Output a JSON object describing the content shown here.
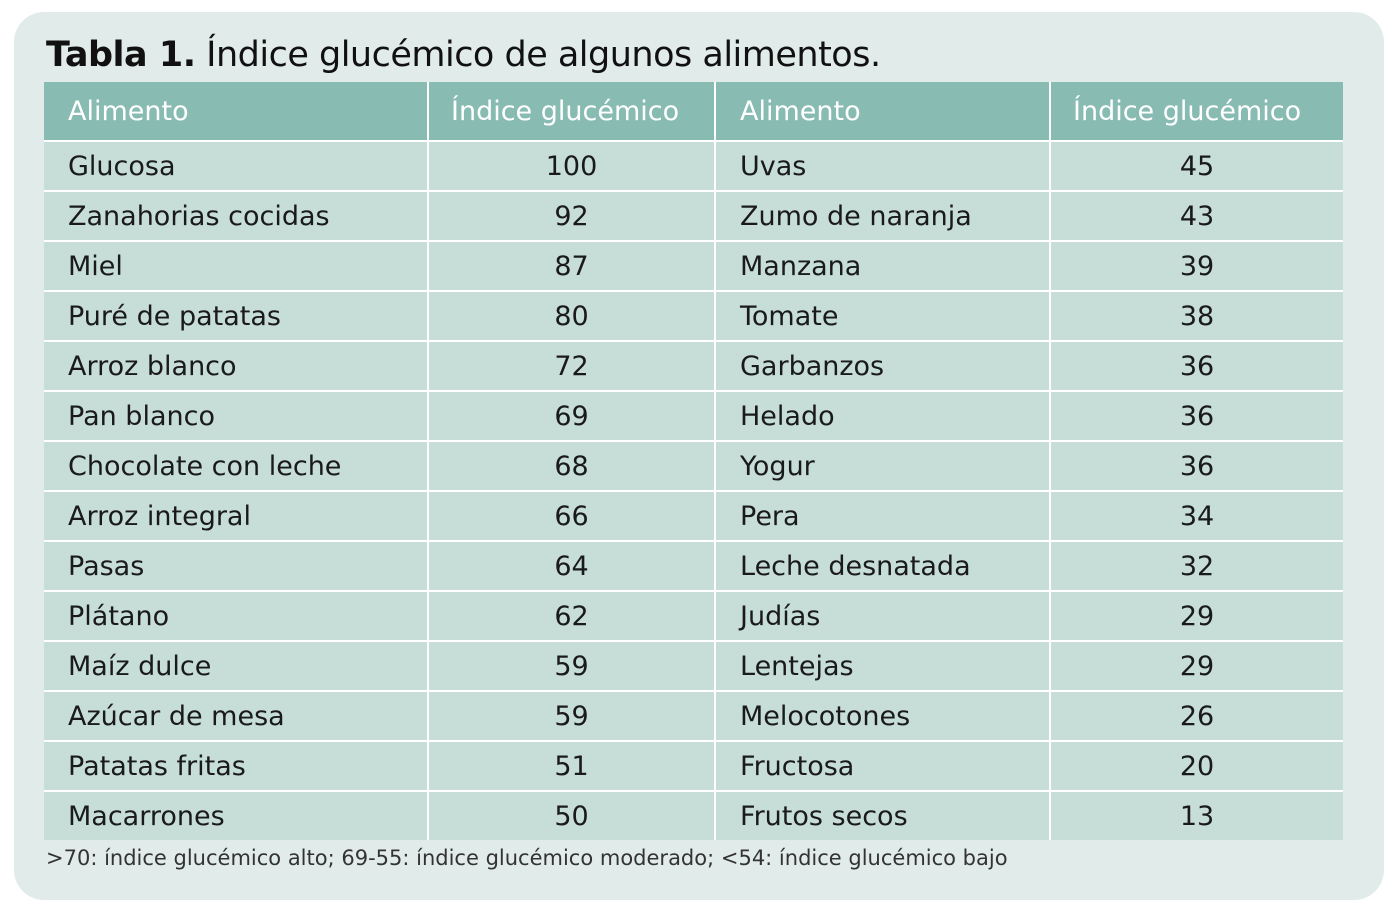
{
  "title": {
    "label": "Tabla 1.",
    "text": "Índice glucémico de algunos alimentos."
  },
  "columns": [
    "Alimento",
    "Índice glucémico",
    "Alimento",
    "Índice glucémico"
  ],
  "rows": [
    {
      "food_left": "Glucosa",
      "gi_left": "100",
      "food_right": "Uvas",
      "gi_right": "45"
    },
    {
      "food_left": "Zanahorias cocidas",
      "gi_left": "92",
      "food_right": "Zumo de naranja",
      "gi_right": "43"
    },
    {
      "food_left": "Miel",
      "gi_left": "87",
      "food_right": "Manzana",
      "gi_right": "39"
    },
    {
      "food_left": "Puré de patatas",
      "gi_left": "80",
      "food_right": "Tomate",
      "gi_right": "38"
    },
    {
      "food_left": "Arroz blanco",
      "gi_left": "72",
      "food_right": "Garbanzos",
      "gi_right": "36"
    },
    {
      "food_left": "Pan blanco",
      "gi_left": "69",
      "food_right": "Helado",
      "gi_right": "36"
    },
    {
      "food_left": "Chocolate con leche",
      "gi_left": "68",
      "food_right": "Yogur",
      "gi_right": "36"
    },
    {
      "food_left": "Arroz integral",
      "gi_left": "66",
      "food_right": "Pera",
      "gi_right": "34"
    },
    {
      "food_left": "Pasas",
      "gi_left": "64",
      "food_right": "Leche desnatada",
      "gi_right": "32"
    },
    {
      "food_left": "Plátano",
      "gi_left": "62",
      "food_right": "Judías",
      "gi_right": "29"
    },
    {
      "food_left": "Maíz dulce",
      "gi_left": "59",
      "food_right": "Lentejas",
      "gi_right": "29"
    },
    {
      "food_left": "Azúcar de mesa",
      "gi_left": "59",
      "food_right": "Melocotones",
      "gi_right": "26"
    },
    {
      "food_left": "Patatas fritas",
      "gi_left": "51",
      "food_right": "Fructosa",
      "gi_right": "20"
    },
    {
      "food_left": "Macarrones",
      "gi_left": "50",
      "food_right": "Frutos secos",
      "gi_right": "13"
    }
  ],
  "footnote": ">70: índice glucémico alto; 69-55: índice glucémico moderado; <54: índice glucémico bajo",
  "colors": {
    "panel_background": "#e1ecea",
    "header_background": "#88bcb3",
    "cell_background": "#c6ddd8",
    "header_text": "#ffffff"
  }
}
